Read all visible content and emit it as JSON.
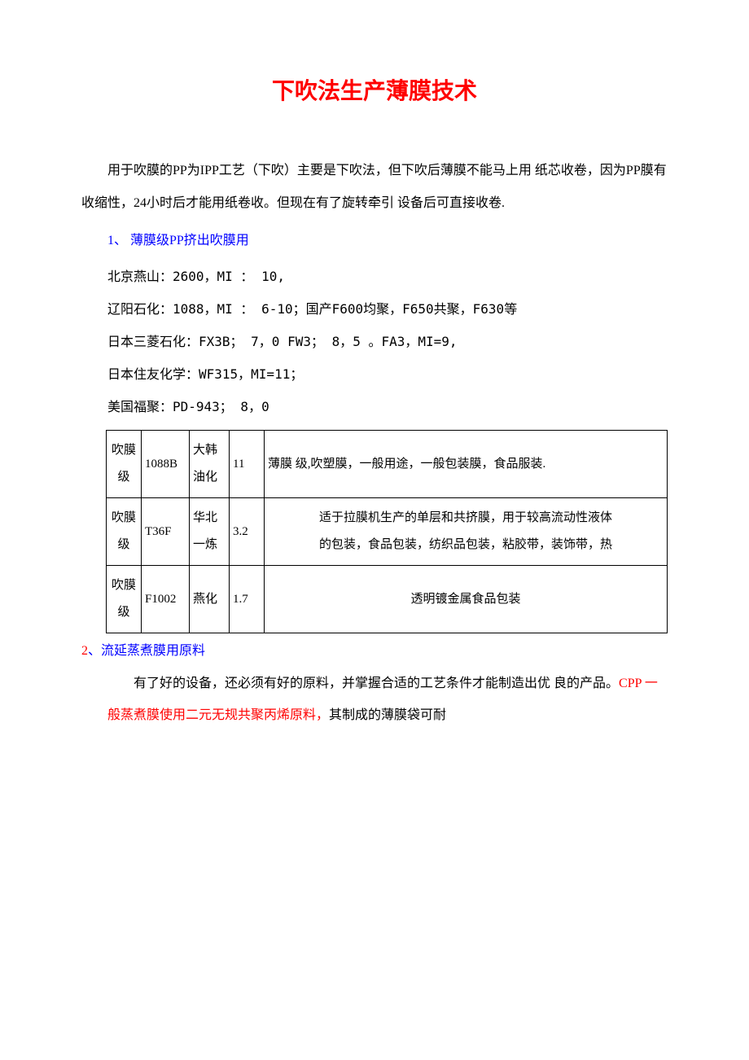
{
  "title": "下吹法生产薄膜技术",
  "intro": "用于吹膜的PP为IPP工艺（下吹）主要是下吹法，但下吹后薄膜不能马上用 纸芯收卷，因为PP膜有收缩性，24小时后才能用纸卷收。但现在有了旋转牵引   设备后可直接收卷.",
  "section1_header": "1、 薄膜级PP挤出吹膜用",
  "lines": [
    "北京燕山：2600，MI ： 10,",
    "辽阳石化：1088，MI ： 6-10；国产F600均聚，F650共聚，F630等",
    "日本三菱石化：FX3B； 7，0 FW3； 8，5 。FA3，MI=9,",
    "日本住友化学：WF315，MI=11；",
    "美国福聚：PD-943； 8，0"
  ],
  "table": {
    "rows": [
      {
        "grade": "吹膜级",
        "code": "1088B",
        "maker": "大韩油化",
        "mi": "11",
        "desc": "薄膜 级,吹塑膜，一般用途，一般包装膜，食品服装.",
        "align": "left"
      },
      {
        "grade": "吹膜级",
        "code": "T36F",
        "maker": "华北一炼",
        "mi": "3.2",
        "desc": "适于拉膜机生产的单层和共挤膜，用于较高流动性液体\n的包装，食品包装，纺织品包装，粘胶带，装饰带，热",
        "align": "center"
      },
      {
        "grade": "吹膜级",
        "code": "F1002",
        "maker": "燕化",
        "mi": "1.7",
        "desc": "透明镀金属食品包装",
        "align": "center"
      }
    ]
  },
  "section2_num": "2",
  "section2_txt": "、流延蒸煮膜用原料",
  "para2_pre": "有了好的设备，还必须有好的原料，并掌握合适的工艺条件才能制造出优 良的产品。",
  "para2_red": "CPP 一般蒸煮膜使用二元无规共聚丙烯原料，",
  "para2_post": "其制成的薄膜袋可耐"
}
